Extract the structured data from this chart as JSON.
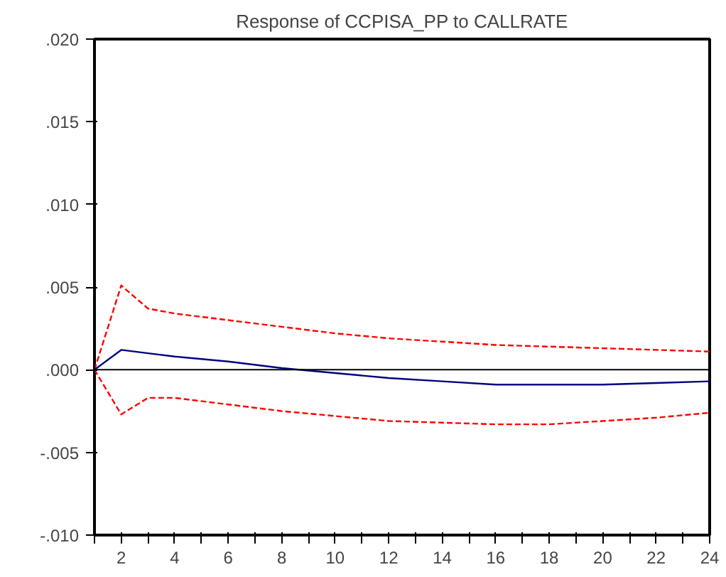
{
  "chart_data": {
    "type": "line",
    "title": "Response of CCPISA_PP to CALLRATE",
    "x": [
      1,
      2,
      3,
      4,
      6,
      8,
      10,
      12,
      14,
      16,
      18,
      20,
      22,
      24
    ],
    "series": [
      {
        "color": "#ff0000",
        "line_style": "dashed",
        "values": [
          0,
          0.0051,
          0.0037,
          0.0034,
          0.003,
          0.0026,
          0.0022,
          0.0019,
          0.0017,
          0.0015,
          0.0014,
          0.0013,
          0.0012,
          0.0011
        ]
      },
      {
        "color": "#000080",
        "line_style": "solid",
        "values": [
          0,
          0.0012,
          0.001,
          0.0008,
          0.0005,
          0.0001,
          -0.0002,
          -0.0005,
          -0.0007,
          -0.0009,
          -0.0009,
          -0.0009,
          -0.0008,
          -0.0007
        ]
      },
      {
        "color": "#ff0000",
        "line_style": "dashed",
        "values": [
          0,
          -0.0027,
          -0.0017,
          -0.0017,
          -0.0021,
          -0.0025,
          -0.0028,
          -0.0031,
          -0.0032,
          -0.0033,
          -0.0033,
          -0.0031,
          -0.0029,
          -0.0026
        ]
      }
    ],
    "xlim": [
      1,
      24
    ],
    "xticks": [
      {
        "value": 1,
        "label": null
      },
      2,
      {
        "value": 3,
        "label": null
      },
      4,
      {
        "value": 5,
        "label": null
      },
      6,
      {
        "value": 7,
        "label": null
      },
      8,
      {
        "value": 9,
        "label": null
      },
      10,
      {
        "value": 11,
        "label": null
      },
      12,
      {
        "value": 13,
        "label": null
      },
      14,
      {
        "value": 15,
        "label": null
      },
      16,
      {
        "value": 17,
        "label": null
      },
      18,
      {
        "value": 19,
        "label": null
      },
      20,
      {
        "value": 21,
        "label": null
      },
      22,
      {
        "value": 23,
        "label": null
      },
      24
    ],
    "ylim": [
      -0.01,
      0.02
    ],
    "yticks": [
      {
        "value": -0.01,
        "label": "-.010"
      },
      {
        "value": -0.005,
        "label": "-.005"
      },
      {
        "value": 0,
        "label": ".000"
      },
      {
        "value": 0.005,
        "label": ".005"
      },
      {
        "value": 0.01,
        "label": ".010"
      },
      {
        "value": 0.015,
        "label": ".015"
      },
      {
        "value": 0.02,
        "label": ".020"
      }
    ],
    "ref_lines": [
      {
        "axis": "y",
        "value": 0,
        "color": "#000000"
      }
    ],
    "grid": false
  }
}
